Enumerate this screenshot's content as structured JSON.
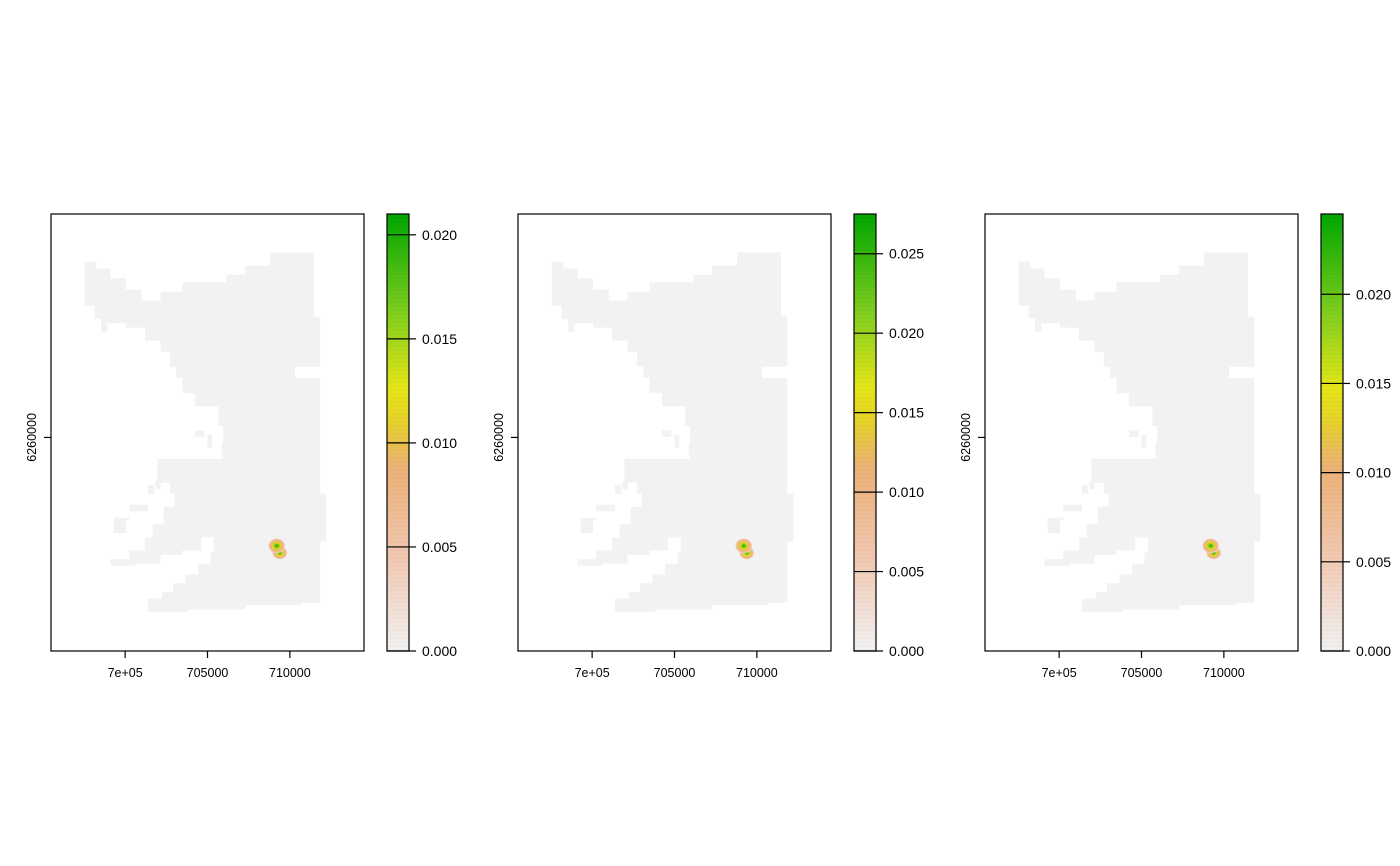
{
  "chart_data": [
    {
      "type": "heatmap",
      "title": "",
      "xlabel": "",
      "ylabel": "",
      "x_ticks": [
        {
          "value": 700000,
          "label": "7e+05"
        },
        {
          "value": 705000,
          "label": "705000"
        },
        {
          "value": 710000,
          "label": "710000"
        }
      ],
      "y_ticks": [
        {
          "value": 6260000,
          "label": "6260000"
        }
      ],
      "xlim": [
        695500,
        714500
      ],
      "ylim": [
        6253500,
        6266800
      ],
      "hotspot": {
        "x": 709200,
        "y": 6256700
      },
      "legend": {
        "position": "right",
        "range": [
          0,
          0.021
        ],
        "ticks": [
          {
            "value": 0.0,
            "label": "0.000"
          },
          {
            "value": 0.005,
            "label": "0.005"
          },
          {
            "value": 0.01,
            "label": "0.010"
          },
          {
            "value": 0.015,
            "label": "0.015"
          },
          {
            "value": 0.02,
            "label": "0.020"
          }
        ]
      }
    },
    {
      "type": "heatmap",
      "title": "",
      "xlabel": "",
      "ylabel": "",
      "x_ticks": [
        {
          "value": 700000,
          "label": "7e+05"
        },
        {
          "value": 705000,
          "label": "705000"
        },
        {
          "value": 710000,
          "label": "710000"
        }
      ],
      "y_ticks": [
        {
          "value": 6260000,
          "label": "6260000"
        }
      ],
      "xlim": [
        695500,
        714500
      ],
      "ylim": [
        6253500,
        6266800
      ],
      "hotspot": {
        "x": 709200,
        "y": 6256700
      },
      "legend": {
        "position": "right",
        "range": [
          0,
          0.0275
        ],
        "ticks": [
          {
            "value": 0.0,
            "label": "0.000"
          },
          {
            "value": 0.005,
            "label": "0.005"
          },
          {
            "value": 0.01,
            "label": "0.010"
          },
          {
            "value": 0.015,
            "label": "0.015"
          },
          {
            "value": 0.02,
            "label": "0.020"
          },
          {
            "value": 0.025,
            "label": "0.025"
          }
        ]
      }
    },
    {
      "type": "heatmap",
      "title": "",
      "xlabel": "",
      "ylabel": "",
      "x_ticks": [
        {
          "value": 700000,
          "label": "7e+05"
        },
        {
          "value": 705000,
          "label": "705000"
        },
        {
          "value": 710000,
          "label": "710000"
        }
      ],
      "y_ticks": [
        {
          "value": 6260000,
          "label": "6260000"
        }
      ],
      "xlim": [
        695500,
        714500
      ],
      "ylim": [
        6253500,
        6266800
      ],
      "hotspot": {
        "x": 709200,
        "y": 6256700
      },
      "legend": {
        "position": "right",
        "range": [
          0,
          0.0245
        ],
        "ticks": [
          {
            "value": 0.0,
            "label": "0.000"
          },
          {
            "value": 0.005,
            "label": "0.005"
          },
          {
            "value": 0.01,
            "label": "0.010"
          },
          {
            "value": 0.015,
            "label": "0.015"
          },
          {
            "value": 0.02,
            "label": "0.020"
          }
        ]
      }
    }
  ],
  "colors": {
    "study_area": "#f2f2f2",
    "scale_low": "#f2f2f2",
    "scale_mid_low": "#ecb176",
    "scale_mid": "#e6e617",
    "scale_high": "#00a600"
  }
}
